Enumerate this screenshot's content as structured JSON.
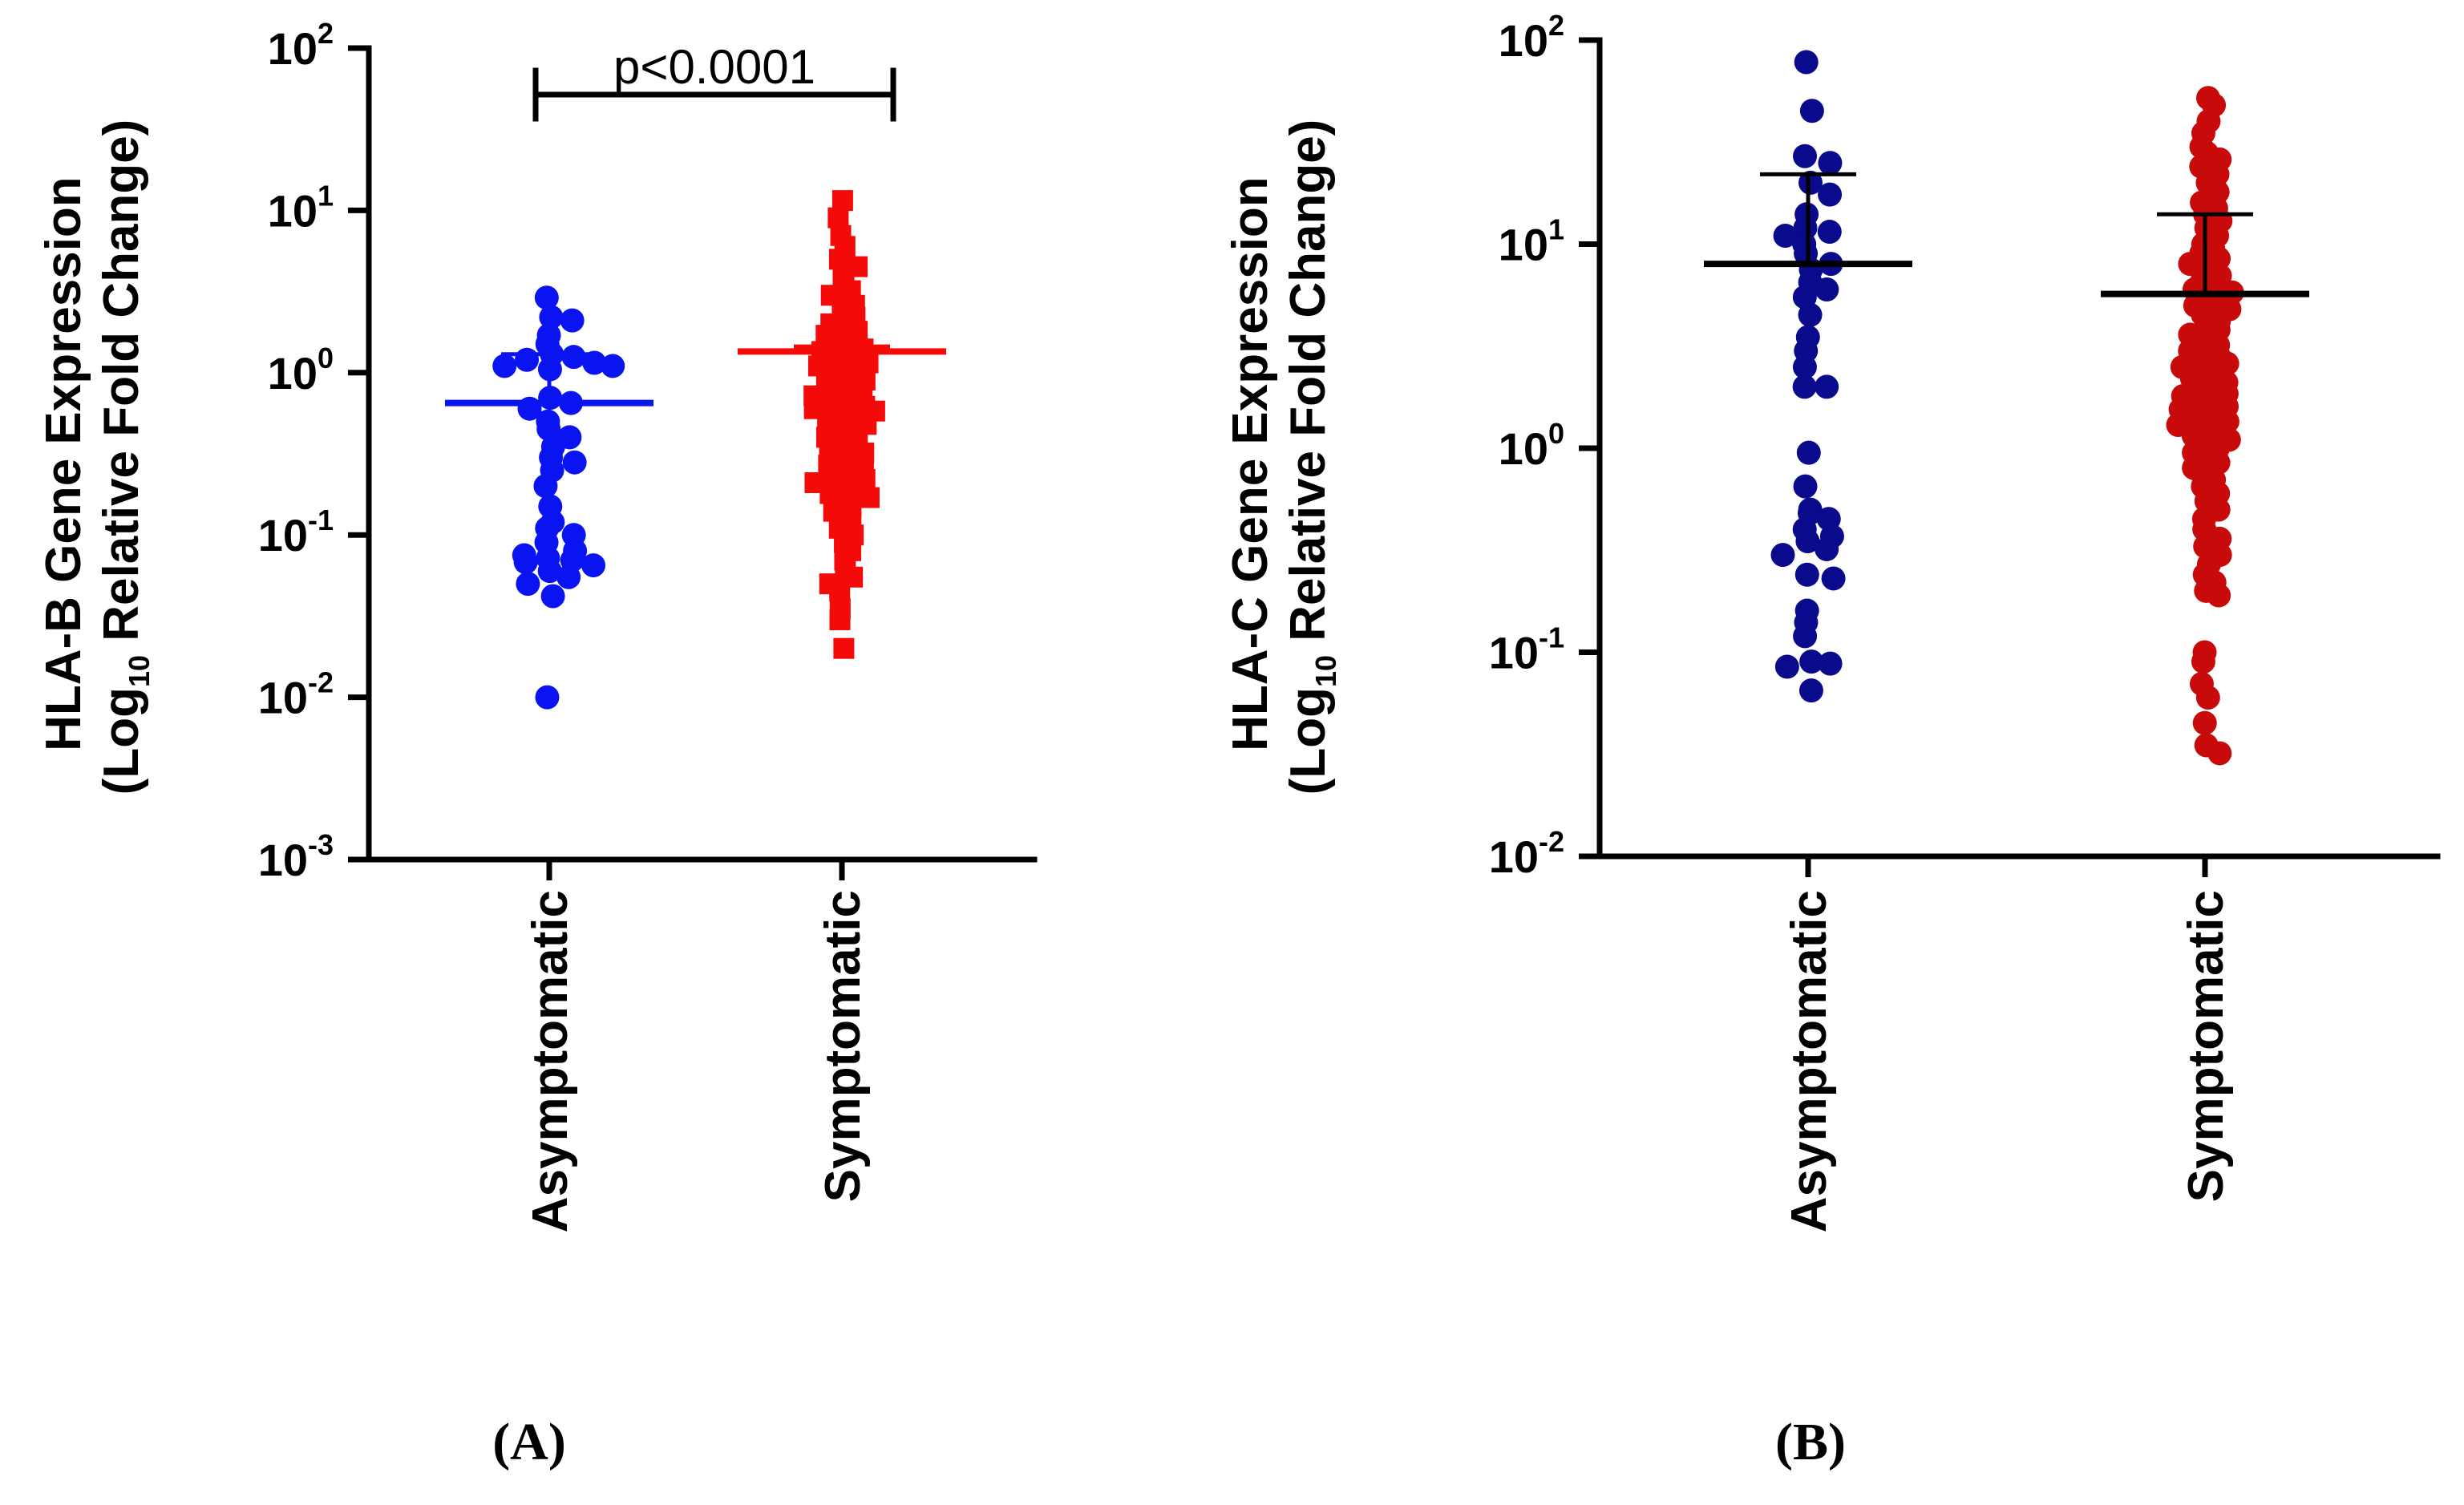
{
  "panels": [
    {
      "panel_label": "(A)",
      "ylabel_line1": "HLA-B Gene Expression",
      "ylabel_line2_pre": "(Log",
      "ylabel_line2_sub": "10",
      "ylabel_line2_post": " Relative Fold Change)",
      "significance": "p<0.0001"
    },
    {
      "panel_label": "(B)",
      "ylabel_line1": "HLA-C Gene Expression",
      "ylabel_line2_pre": "(Log",
      "ylabel_line2_sub": "10",
      "ylabel_line2_post": " Relative Fold Change)",
      "significance": ""
    }
  ],
  "colors": {
    "panelA_asym": "#0a14f0",
    "panelA_sym": "#f50a0a",
    "panelB_asym": "#0a0a8c",
    "panelB_sym": "#c80a0a",
    "axis": "#000000"
  },
  "chart_data": [
    {
      "type": "scatter",
      "title": "",
      "ylabel": "HLA-B Gene Expression (Log10 Relative Fold Change)",
      "yscale": "log",
      "ylim": [
        0.001,
        100
      ],
      "yticks": [
        {
          "base": "10",
          "exp": "-3",
          "value": 0.001
        },
        {
          "base": "10",
          "exp": "-2",
          "value": 0.01
        },
        {
          "base": "10",
          "exp": "-1",
          "value": 0.1
        },
        {
          "base": "10",
          "exp": "0",
          "value": 1
        },
        {
          "base": "10",
          "exp": "1",
          "value": 10
        },
        {
          "base": "10",
          "exp": "2",
          "value": 100
        }
      ],
      "categories": [
        "Asymptomatic",
        "Symptomatic"
      ],
      "series": [
        {
          "name": "Asymptomatic",
          "marker": "circle",
          "color": "#0a14f0",
          "mean": 0.65,
          "sd_upper": 1.3,
          "values": [
            2.9,
            2.2,
            2.1,
            1.7,
            1.5,
            1.3,
            1.25,
            1.2,
            1.15,
            1.1,
            1.1,
            1.05,
            0.7,
            0.65,
            0.6,
            0.5,
            0.45,
            0.4,
            0.35,
            0.3,
            0.28,
            0.25,
            0.2,
            0.15,
            0.12,
            0.11,
            0.1,
            0.09,
            0.08,
            0.075,
            0.072,
            0.07,
            0.068,
            0.065,
            0.06,
            0.055,
            0.05,
            0.042,
            0.01
          ]
        },
        {
          "name": "Symptomatic",
          "marker": "square",
          "color": "#f50a0a",
          "mean": 1.35,
          "sd_upper": 1.45,
          "values": [
            11.5,
            9,
            7,
            6,
            5,
            4.5,
            4,
            3.5,
            3.2,
            3,
            2.8,
            2.6,
            2.4,
            2.2,
            2,
            1.9,
            1.8,
            1.7,
            1.6,
            1.5,
            1.45,
            1.4,
            1.35,
            1.3,
            1.25,
            1.2,
            1.15,
            1.1,
            1.05,
            1,
            0.95,
            0.9,
            0.85,
            0.8,
            0.78,
            0.75,
            0.72,
            0.7,
            0.68,
            0.65,
            0.62,
            0.6,
            0.58,
            0.55,
            0.52,
            0.5,
            0.48,
            0.45,
            0.42,
            0.4,
            0.38,
            0.36,
            0.34,
            0.32,
            0.3,
            0.28,
            0.27,
            0.26,
            0.25,
            0.24,
            0.23,
            0.22,
            0.21,
            0.2,
            0.19,
            0.18,
            0.17,
            0.16,
            0.15,
            0.14,
            0.13,
            0.12,
            0.11,
            0.1,
            0.09,
            0.08,
            0.07,
            0.06,
            0.055,
            0.05,
            0.045,
            0.035,
            0.03,
            0.02
          ]
        }
      ],
      "annotation": {
        "text": "p<0.0001",
        "between": [
          "Asymptomatic",
          "Symptomatic"
        ],
        "at_value": 60
      }
    },
    {
      "type": "scatter",
      "title": "",
      "ylabel": "HLA-C Gene Expression (Log10 Relative Fold Change)",
      "yscale": "log",
      "ylim": [
        0.01,
        100
      ],
      "yticks": [
        {
          "base": "10",
          "exp": "-2",
          "value": 0.01
        },
        {
          "base": "10",
          "exp": "-1",
          "value": 0.1
        },
        {
          "base": "10",
          "exp": "0",
          "value": 1
        },
        {
          "base": "10",
          "exp": "1",
          "value": 10
        },
        {
          "base": "10",
          "exp": "2",
          "value": 100
        }
      ],
      "categories": [
        "Asymptomatic",
        "Symptomatic"
      ],
      "series": [
        {
          "name": "Asymptomatic",
          "marker": "circle",
          "color": "#0a0a8c",
          "mean": 8.0,
          "sd_upper": 22,
          "values": [
            78,
            45,
            27,
            25,
            20,
            17.5,
            14,
            12,
            11.5,
            11,
            10,
            9,
            8,
            7.5,
            6.5,
            6,
            5.5,
            4.5,
            3.5,
            3,
            2.5,
            2,
            2,
            0.95,
            0.65,
            0.5,
            0.48,
            0.45,
            0.4,
            0.37,
            0.35,
            0.32,
            0.3,
            0.24,
            0.23,
            0.16,
            0.14,
            0.12,
            0.09,
            0.088,
            0.085,
            0.065
          ]
        },
        {
          "name": "Symptomatic",
          "marker": "circle",
          "color": "#c80a0a",
          "mean": 5.7,
          "sd_upper": 14,
          "values": [
            52,
            48,
            40,
            35,
            30,
            28,
            26,
            24,
            22,
            20,
            18,
            16,
            15,
            14,
            13,
            12,
            11,
            10,
            9.5,
            9,
            8.5,
            8,
            7.5,
            7,
            6.5,
            6.2,
            6,
            5.8,
            5.5,
            5.2,
            5,
            4.8,
            4.5,
            4.2,
            4,
            3.8,
            3.6,
            3.4,
            3.2,
            3,
            2.9,
            2.8,
            2.7,
            2.6,
            2.5,
            2.4,
            2.3,
            2.2,
            2.1,
            2,
            1.95,
            1.9,
            1.85,
            1.8,
            1.75,
            1.7,
            1.65,
            1.6,
            1.55,
            1.5,
            1.45,
            1.4,
            1.35,
            1.3,
            1.25,
            1.2,
            1.15,
            1.1,
            1.05,
            1,
            0.95,
            0.9,
            0.85,
            0.8,
            0.75,
            0.7,
            0.65,
            0.6,
            0.55,
            0.5,
            0.45,
            0.4,
            0.36,
            0.33,
            0.3,
            0.27,
            0.24,
            0.22,
            0.2,
            0.19,
            0.1,
            0.09,
            0.07,
            0.06,
            0.045,
            0.035,
            0.032
          ]
        }
      ]
    }
  ]
}
